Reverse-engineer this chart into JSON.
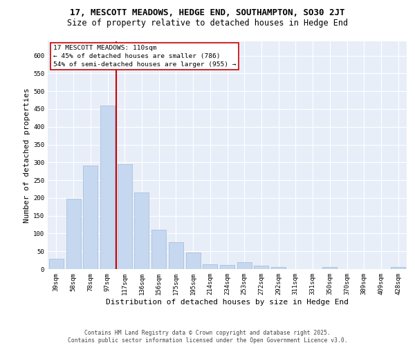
{
  "title": "17, MESCOTT MEADOWS, HEDGE END, SOUTHAMPTON, SO30 2JT",
  "subtitle": "Size of property relative to detached houses in Hedge End",
  "xlabel": "Distribution of detached houses by size in Hedge End",
  "ylabel": "Number of detached properties",
  "bar_color": "#c5d8f0",
  "bar_edgecolor": "#a0b8d8",
  "bg_color": "#e8eef8",
  "grid_color": "#ffffff",
  "categories": [
    "39sqm",
    "58sqm",
    "78sqm",
    "97sqm",
    "117sqm",
    "136sqm",
    "156sqm",
    "175sqm",
    "195sqm",
    "214sqm",
    "234sqm",
    "253sqm",
    "272sqm",
    "292sqm",
    "311sqm",
    "331sqm",
    "350sqm",
    "370sqm",
    "389sqm",
    "409sqm",
    "428sqm"
  ],
  "values": [
    30,
    197,
    290,
    460,
    295,
    215,
    110,
    75,
    47,
    13,
    12,
    20,
    10,
    5,
    0,
    0,
    6,
    0,
    0,
    0,
    5
  ],
  "annotation_text": "17 MESCOTT MEADOWS: 110sqm\n← 45% of detached houses are smaller (786)\n54% of semi-detached houses are larger (955) →",
  "vline_bin_index": 4,
  "vline_color": "#cc0000",
  "annotation_box_color": "#ffffff",
  "annotation_box_edgecolor": "#cc0000",
  "ylim": [
    0,
    640
  ],
  "yticks": [
    0,
    50,
    100,
    150,
    200,
    250,
    300,
    350,
    400,
    450,
    500,
    550,
    600
  ],
  "footnote": "Contains HM Land Registry data © Crown copyright and database right 2025.\nContains public sector information licensed under the Open Government Licence v3.0.",
  "title_fontsize": 9,
  "subtitle_fontsize": 8.5,
  "axis_label_fontsize": 8,
  "tick_fontsize": 6.5,
  "annotation_fontsize": 6.8,
  "footnote_fontsize": 5.8
}
